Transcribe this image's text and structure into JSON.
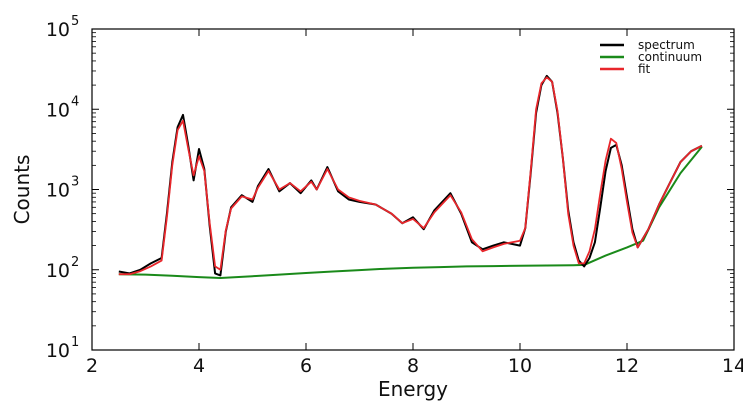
{
  "chart_data": {
    "type": "line",
    "xlabel": "Energy",
    "ylabel": "Counts",
    "xlim": [
      2,
      14
    ],
    "ylim": [
      10,
      100000
    ],
    "yscale": "log",
    "x_ticks": [
      2,
      4,
      6,
      8,
      10,
      12,
      14
    ],
    "y_ticks": [
      {
        "value": 10,
        "base": "10",
        "exp": "1"
      },
      {
        "value": 100,
        "base": "10",
        "exp": "2"
      },
      {
        "value": 1000,
        "base": "10",
        "exp": "3"
      },
      {
        "value": 10000,
        "base": "10",
        "exp": "4"
      },
      {
        "value": 100000,
        "base": "10",
        "exp": "5"
      }
    ],
    "legend_position": "top-right",
    "grid": false,
    "series": [
      {
        "name": "spectrum",
        "color": "#000000",
        "x": [
          2.5,
          2.7,
          2.9,
          3.1,
          3.3,
          3.4,
          3.5,
          3.6,
          3.7,
          3.8,
          3.9,
          4.0,
          4.1,
          4.2,
          4.3,
          4.4,
          4.5,
          4.6,
          4.8,
          5.0,
          5.1,
          5.3,
          5.5,
          5.7,
          5.9,
          6.1,
          6.2,
          6.4,
          6.6,
          6.8,
          7.0,
          7.3,
          7.6,
          7.8,
          8.0,
          8.2,
          8.4,
          8.7,
          8.9,
          9.1,
          9.3,
          9.5,
          9.7,
          10.0,
          10.1,
          10.2,
          10.3,
          10.4,
          10.5,
          10.6,
          10.7,
          10.8,
          10.9,
          11.0,
          11.1,
          11.2,
          11.3,
          11.4,
          11.5,
          11.6,
          11.7,
          11.8,
          11.9,
          12.0,
          12.1,
          12.2,
          12.4,
          12.6,
          12.8,
          13.0,
          13.2,
          13.4
        ],
        "y": [
          95,
          90,
          100,
          120,
          140,
          500,
          2200,
          6000,
          8500,
          3500,
          1300,
          3200,
          1800,
          350,
          90,
          85,
          300,
          600,
          850,
          700,
          1100,
          1800,
          950,
          1200,
          900,
          1300,
          1000,
          1900,
          950,
          750,
          700,
          650,
          500,
          380,
          450,
          320,
          550,
          900,
          500,
          220,
          180,
          200,
          220,
          200,
          330,
          1600,
          9000,
          20000,
          26000,
          22000,
          9000,
          2500,
          550,
          220,
          130,
          110,
          140,
          220,
          600,
          1700,
          3300,
          3600,
          2000,
          800,
          320,
          190,
          320,
          650,
          1200,
          2200,
          3000,
          3500
        ]
      },
      {
        "name": "continuum",
        "color": "#1a8a1a",
        "x": [
          2.5,
          3.0,
          3.5,
          4.0,
          4.4,
          5.0,
          5.5,
          6.0,
          6.5,
          7.0,
          7.5,
          8.0,
          8.5,
          9.0,
          9.5,
          10.0,
          10.5,
          11.0,
          11.2,
          11.6,
          12.0,
          12.3,
          12.6,
          13.0,
          13.4
        ],
        "y": [
          88,
          87,
          84,
          81,
          79,
          83,
          87,
          91,
          95,
          99,
          103,
          106,
          108,
          110,
          111,
          112,
          113,
          114,
          115,
          150,
          190,
          230,
          600,
          1600,
          3400
        ]
      },
      {
        "name": "fit",
        "color": "#e8262b",
        "x": [
          2.5,
          2.7,
          2.9,
          3.1,
          3.3,
          3.4,
          3.5,
          3.6,
          3.7,
          3.8,
          3.9,
          4.0,
          4.1,
          4.2,
          4.3,
          4.4,
          4.5,
          4.6,
          4.8,
          5.0,
          5.1,
          5.3,
          5.5,
          5.7,
          5.9,
          6.1,
          6.2,
          6.4,
          6.6,
          6.8,
          7.0,
          7.3,
          7.6,
          7.8,
          8.0,
          8.2,
          8.4,
          8.7,
          8.9,
          9.1,
          9.3,
          9.5,
          9.7,
          10.0,
          10.1,
          10.2,
          10.3,
          10.4,
          10.5,
          10.6,
          10.7,
          10.8,
          10.9,
          11.0,
          11.1,
          11.2,
          11.3,
          11.4,
          11.5,
          11.6,
          11.7,
          11.8,
          11.9,
          12.0,
          12.1,
          12.2,
          12.4,
          12.6,
          12.8,
          13.0,
          13.2,
          13.4
        ],
        "y": [
          88,
          88,
          96,
          110,
          130,
          450,
          2000,
          5500,
          7200,
          3200,
          1500,
          2600,
          1700,
          380,
          110,
          100,
          310,
          580,
          820,
          750,
          1050,
          1700,
          1000,
          1200,
          950,
          1250,
          1000,
          1800,
          1000,
          800,
          720,
          650,
          500,
          380,
          430,
          330,
          520,
          850,
          520,
          240,
          170,
          190,
          210,
          230,
          330,
          1700,
          10000,
          21000,
          25000,
          22000,
          9500,
          2500,
          500,
          200,
          120,
          120,
          170,
          320,
          900,
          2300,
          4300,
          3800,
          1800,
          700,
          290,
          190,
          320,
          650,
          1200,
          2200,
          3000,
          3500
        ]
      }
    ]
  }
}
